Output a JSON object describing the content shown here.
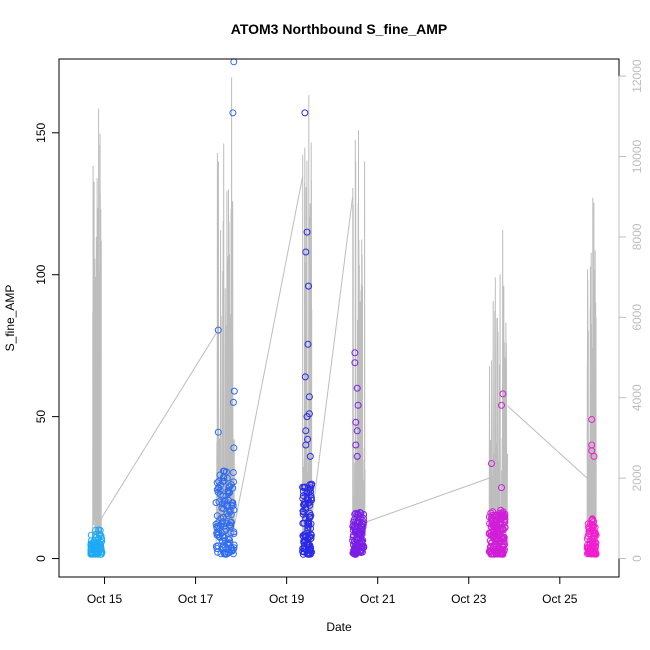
{
  "chart_data": {
    "type": "scatter",
    "title": "ATOM3 Northbound S_fine_AMP",
    "xlabel": "Date",
    "ylabel": "S_fine_AMP",
    "y_ticks": [
      0,
      50,
      100,
      150
    ],
    "y_right_ticks": [
      0,
      2000,
      4000,
      6000,
      8000,
      10000,
      12000
    ],
    "x_ticks": [
      "Oct 15",
      "Oct 17",
      "Oct 19",
      "Oct 21",
      "Oct 23",
      "Oct 25"
    ],
    "x_tick_days": [
      15,
      17,
      19,
      21,
      23,
      25
    ],
    "xlim": [
      14.0,
      26.3
    ],
    "ylim": [
      -6.5,
      176
    ],
    "y_right_lim": [
      -6.5,
      176
    ],
    "y_right_scale": 70.6,
    "grid": false,
    "colors": {
      "oct14": "#1ea9f5",
      "oct17": "#2f6cf0",
      "oct19": "#2a2ae6",
      "oct20": "#7a1ee6",
      "oct23": "#d11ed8",
      "oct25": "#f21ed0",
      "trace": "#bdbdbd"
    },
    "scatter_clusters": [
      {
        "date": "Oct 14-15",
        "t0": 14.7,
        "t1": 14.95,
        "color_key": "oct14",
        "max_y": 9,
        "peaks": [],
        "n": 60
      },
      {
        "date": "Oct 17-18",
        "t0": 17.45,
        "t1": 17.85,
        "color_key": "oct17",
        "max_y": 30,
        "peaks": [
          [
            17.5,
            80.5
          ],
          [
            17.5,
            44.5
          ],
          [
            17.82,
            157
          ],
          [
            17.84,
            175
          ],
          [
            17.85,
            59
          ],
          [
            17.83,
            55
          ],
          [
            17.84,
            39
          ]
        ],
        "n": 120
      },
      {
        "date": "Oct 19",
        "t0": 19.35,
        "t1": 19.55,
        "color_key": "oct19",
        "max_y": 25,
        "peaks": [
          [
            19.4,
            157
          ],
          [
            19.45,
            115
          ],
          [
            19.42,
            108
          ],
          [
            19.48,
            96
          ],
          [
            19.47,
            75.5
          ],
          [
            19.41,
            64
          ],
          [
            19.5,
            57
          ],
          [
            19.5,
            51
          ],
          [
            19.45,
            50
          ],
          [
            19.42,
            45
          ],
          [
            19.46,
            42
          ],
          [
            19.42,
            40
          ],
          [
            19.52,
            36
          ]
        ],
        "n": 100
      },
      {
        "date": "Oct 20-21",
        "t0": 20.45,
        "t1": 20.7,
        "color_key": "oct20",
        "max_y": 15,
        "peaks": [
          [
            20.5,
            72.5
          ],
          [
            20.5,
            69
          ],
          [
            20.55,
            60
          ],
          [
            20.57,
            54
          ],
          [
            20.52,
            48
          ],
          [
            20.55,
            45
          ],
          [
            20.52,
            40
          ],
          [
            20.55,
            36
          ]
        ],
        "n": 110
      },
      {
        "date": "Oct 23-24",
        "t0": 23.45,
        "t1": 23.8,
        "color_key": "oct23",
        "max_y": 16,
        "peaks": [
          [
            23.75,
            58
          ],
          [
            23.72,
            54
          ],
          [
            23.5,
            33.5
          ],
          [
            23.72,
            25
          ]
        ],
        "n": 150
      },
      {
        "date": "Oct 25-26",
        "t0": 25.6,
        "t1": 25.8,
        "color_key": "oct25",
        "max_y": 13,
        "peaks": [
          [
            25.7,
            49
          ],
          [
            25.7,
            40
          ],
          [
            25.7,
            38
          ],
          [
            25.75,
            36
          ]
        ],
        "n": 80
      }
    ],
    "trace_bursts": [
      {
        "t0": 14.74,
        "t1": 14.93,
        "peaks": [
          8200,
          10800,
          10900,
          11000,
          11600,
          12000,
          9500
        ]
      },
      {
        "t0": 17.45,
        "t1": 17.85,
        "peaks": [
          9000,
          10200,
          9800,
          11000,
          11500,
          11900,
          12100,
          12800,
          11000,
          9500
        ]
      },
      {
        "t0": 19.35,
        "t1": 19.55,
        "peaks": [
          10600,
          11800,
          12500,
          13000,
          12200,
          10900,
          9300
        ]
      },
      {
        "t0": 20.45,
        "t1": 20.72,
        "peaks": [
          9500,
          10600,
          11000,
          12000,
          12500,
          10500,
          11000,
          9000
        ]
      },
      {
        "t0": 23.45,
        "t1": 23.85,
        "peaks": [
          8500,
          9200,
          8600,
          8900,
          9000,
          8800,
          8600,
          9100,
          8500
        ]
      },
      {
        "t0": 25.6,
        "t1": 25.8,
        "peaks": [
          9200,
          8200,
          8500,
          9100,
          8800,
          8400
        ]
      }
    ],
    "trace_connectors": [
      [
        [
          14.93,
          1000
        ],
        [
          17.45,
          5600
        ]
      ],
      [
        [
          17.85,
          800
        ],
        [
          19.35,
          9500
        ]
      ],
      [
        [
          19.55,
          1000
        ],
        [
          20.45,
          9000
        ]
      ],
      [
        [
          20.72,
          900
        ],
        [
          23.45,
          2000
        ]
      ],
      [
        [
          23.85,
          3800
        ],
        [
          25.6,
          2000
        ]
      ]
    ]
  }
}
